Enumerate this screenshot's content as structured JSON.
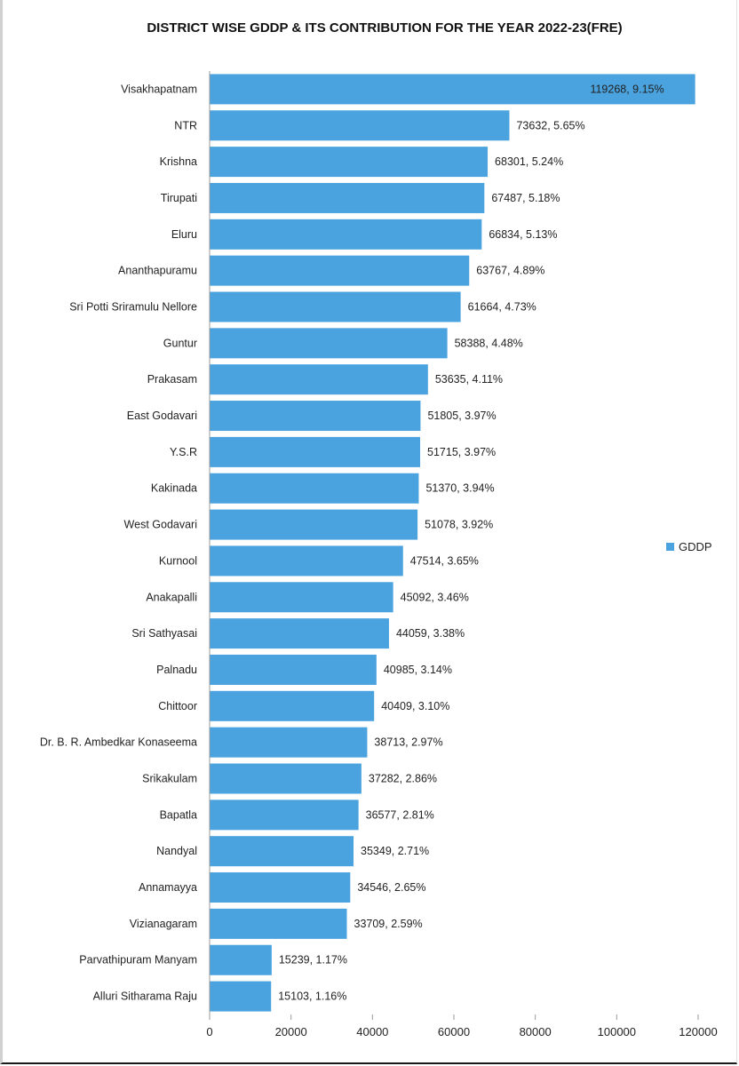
{
  "chart_data": {
    "type": "bar",
    "orientation": "horizontal",
    "title": "DISTRICT WISE GDDP & ITS CONTRIBUTION FOR THE YEAR 2022-23(FRE)",
    "xlabel": "",
    "ylabel": "",
    "xlim": [
      0,
      120000
    ],
    "x_ticks": [
      "0",
      "20000",
      "40000",
      "60000",
      "80000",
      "100000",
      "120000"
    ],
    "grid": false,
    "legend_position": "right",
    "bar_color": "#4aa3df",
    "series": [
      {
        "name": "GDDP",
        "categories": [
          "Visakhapatnam",
          "NTR",
          "Krishna",
          "Tirupati",
          "Eluru",
          "Ananthapuramu",
          "Sri Potti Sriramulu Nellore",
          "Guntur",
          "Prakasam",
          "East Godavari",
          "Y.S.R",
          "Kakinada",
          "West Godavari",
          "Kurnool",
          "Anakapalli",
          "Sri Sathyasai",
          "Palnadu",
          "Chittoor",
          "Dr. B. R. Ambedkar  Konaseema",
          "Srikakulam",
          "Bapatla",
          "Nandyal",
          "Annamayya",
          "Vizianagaram",
          "Parvathipuram Manyam",
          "Alluri  Sitharama Raju"
        ],
        "values": [
          119268,
          73632,
          68301,
          67487,
          66834,
          63767,
          61664,
          58388,
          53635,
          51805,
          51715,
          51370,
          51078,
          47514,
          45092,
          44059,
          40985,
          40409,
          38713,
          37282,
          36577,
          35349,
          34546,
          33709,
          15239,
          15103
        ],
        "data_labels": [
          "119268, 9.15%",
          "73632, 5.65%",
          "68301, 5.24%",
          "67487,  5.18%",
          "66834, 5.13%",
          "63767,  4.89%",
          "61664, 4.73%",
          "58388,  4.48%",
          "53635, 4.11%",
          "51805, 3.97%",
          "51715, 3.97%",
          "51370, 3.94%",
          "51078, 3.92%",
          "47514, 3.65%",
          "45092, 3.46%",
          "44059, 3.38%",
          "40985, 3.14%",
          "40409, 3.10%",
          "38713, 2.97%",
          "37282, 2.86%",
          "36577, 2.81%",
          "35349, 2.71%",
          "34546, 2.65%",
          "33709, 2.59%",
          "15239, 1.17%",
          "15103, 1.16%"
        ]
      }
    ]
  }
}
